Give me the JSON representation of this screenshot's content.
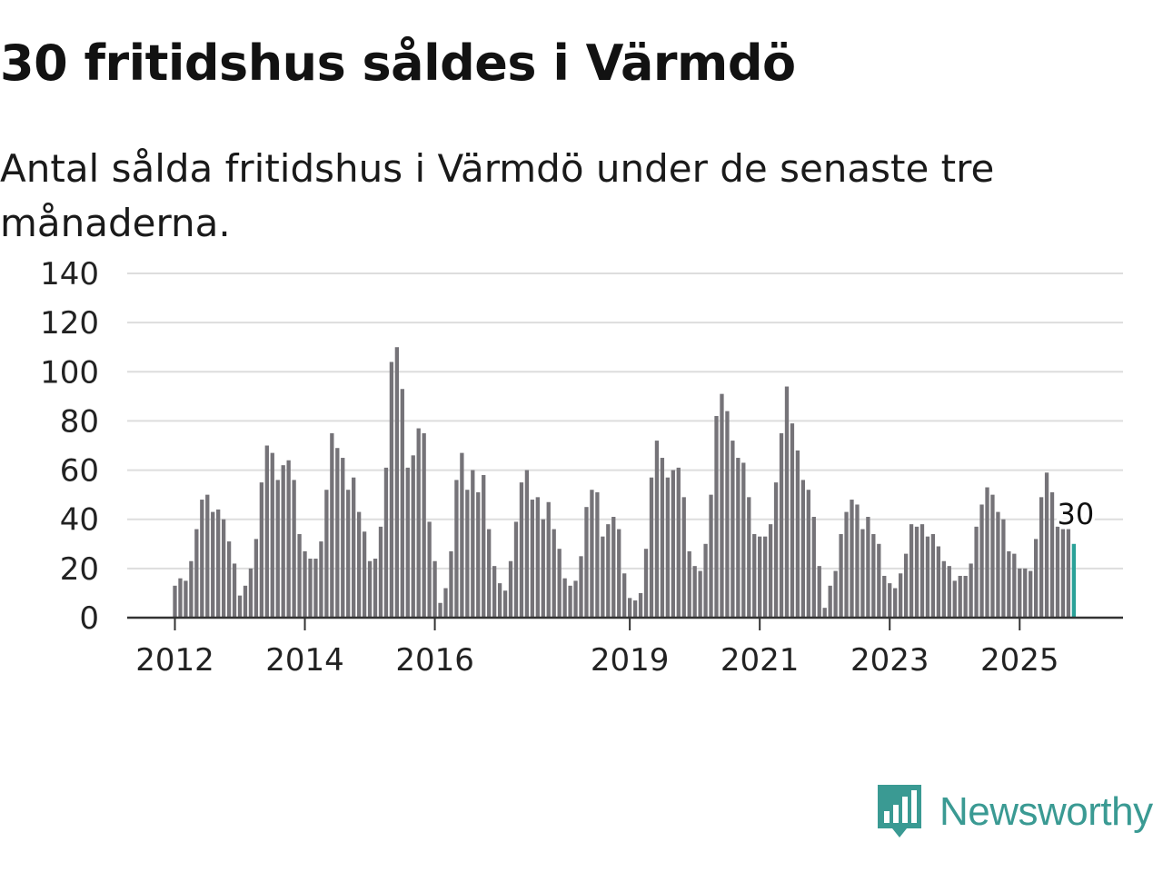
{
  "title": "30 fritidshus såldes i Värmdö",
  "subtitle": "Antal sålda fritidshus i Värmdö under de senaste tre månaderna.",
  "brand": {
    "name": "Newsworthy",
    "color": "#3a9a93",
    "icon": "bar-chart-speech-bubble-icon"
  },
  "colors": {
    "bar": "#757378",
    "highlight": "#2aa198",
    "grid": "#dddddd",
    "axis": "#333333"
  },
  "chart_data": {
    "type": "bar",
    "title": "30 fritidshus såldes i Värmdö",
    "subtitle": "Antal sålda fritidshus i Värmdö under de senaste tre månaderna.",
    "xlabel": "",
    "ylabel": "",
    "ylim": [
      0,
      140
    ],
    "yticks": [
      0,
      20,
      40,
      60,
      80,
      100,
      120,
      140
    ],
    "xticks": [
      {
        "label": "2012",
        "index": 0
      },
      {
        "label": "2014",
        "index": 24
      },
      {
        "label": "2016",
        "index": 48
      },
      {
        "label": "2019",
        "index": 84
      },
      {
        "label": "2021",
        "index": 108
      },
      {
        "label": "2023",
        "index": 132
      },
      {
        "label": "2025",
        "index": 156
      }
    ],
    "start": "2012-01",
    "grid": true,
    "highlight_last": true,
    "highlight_label": "30",
    "values": [
      13,
      16,
      15,
      23,
      36,
      48,
      50,
      43,
      44,
      40,
      31,
      22,
      9,
      13,
      20,
      32,
      55,
      70,
      67,
      56,
      62,
      64,
      56,
      34,
      27,
      24,
      24,
      31,
      52,
      75,
      69,
      65,
      52,
      57,
      43,
      35,
      23,
      24,
      37,
      61,
      104,
      110,
      93,
      61,
      66,
      77,
      75,
      39,
      23,
      6,
      12,
      27,
      56,
      67,
      52,
      60,
      51,
      58,
      36,
      21,
      14,
      11,
      23,
      39,
      55,
      60,
      48,
      49,
      40,
      47,
      36,
      28,
      16,
      13,
      15,
      25,
      45,
      52,
      51,
      33,
      38,
      41,
      36,
      18,
      8,
      7,
      10,
      28,
      57,
      72,
      65,
      57,
      60,
      61,
      49,
      27,
      21,
      19,
      30,
      50,
      82,
      91,
      84,
      72,
      65,
      63,
      49,
      34,
      33,
      33,
      38,
      55,
      75,
      94,
      79,
      68,
      56,
      52,
      41,
      21,
      4,
      13,
      19,
      34,
      43,
      48,
      46,
      36,
      41,
      34,
      30,
      17,
      14,
      12,
      18,
      26,
      38,
      37,
      38,
      33,
      34,
      29,
      23,
      21,
      15,
      17,
      17,
      22,
      37,
      46,
      53,
      50,
      43,
      40,
      27,
      26,
      20,
      20,
      19,
      32,
      49,
      59,
      51,
      37,
      36,
      36,
      30
    ]
  }
}
